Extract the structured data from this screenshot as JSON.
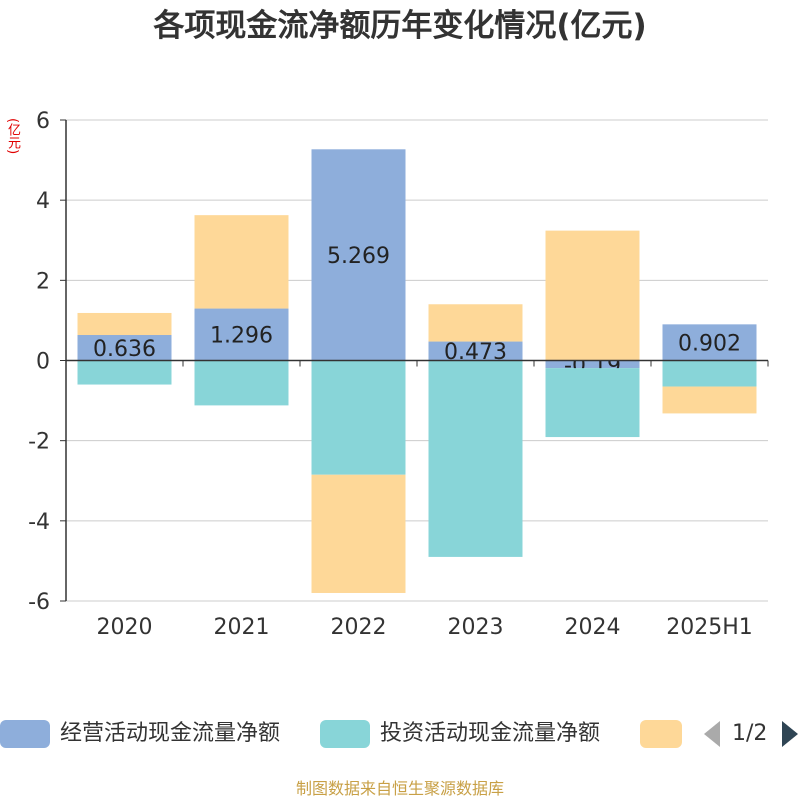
{
  "title": "各项现金流净额历年变化情况(亿元)",
  "unit_label": "(亿元)",
  "source": "制图数据来自恒生聚源数据库",
  "legend": {
    "items": [
      {
        "label": "经营活动现金流量净额",
        "color": "#8eaedb"
      },
      {
        "label": "投资活动现金流量净额",
        "color": "#88d5d8"
      },
      {
        "label": "",
        "color": "#fed898"
      }
    ],
    "page": "1/2"
  },
  "chart_data": {
    "type": "bar",
    "stacked": true,
    "categories": [
      "2020",
      "2021",
      "2022",
      "2023",
      "2024",
      "2025H1"
    ],
    "series": [
      {
        "name": "经营活动现金流量净额",
        "color": "#8eaedb",
        "values": [
          0.636,
          1.296,
          5.269,
          0.473,
          -0.19,
          0.902
        ],
        "labels": [
          "0.636",
          "1.296",
          "5.269",
          "0.473",
          "-0.19",
          "0.902"
        ]
      },
      {
        "name": "投资活动现金流量净额",
        "color": "#88d5d8",
        "values": [
          -0.6,
          -1.12,
          -2.85,
          -4.9,
          -1.72,
          -0.65
        ]
      },
      {
        "color": "#fed898",
        "values": [
          0.55,
          2.33,
          -2.95,
          0.93,
          3.24,
          -0.67
        ]
      }
    ],
    "ylim": [
      -6,
      6
    ],
    "yticks": [
      -6,
      -4,
      -2,
      0,
      2,
      4,
      6
    ],
    "grid": true,
    "legend_position": "bottom"
  }
}
